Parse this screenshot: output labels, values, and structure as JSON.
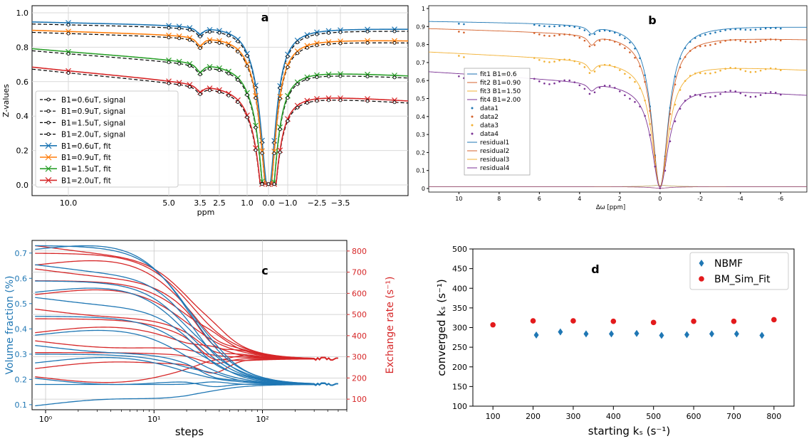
{
  "chart_data": [
    {
      "panel": "a",
      "type": "line",
      "panel_label": "a",
      "xlabel": "ppm",
      "ylabel": "Z-values",
      "x_ticks": [
        "10.0",
        "5.0",
        "3.5",
        "2.5",
        "1.0",
        "0.0",
        "−1.0",
        "−2.5",
        "−3.5"
      ],
      "y_ticks": [
        "0.0",
        "0.2",
        "0.4",
        "0.6",
        "0.8",
        "1.0"
      ],
      "ylim": [
        0,
        1.05
      ],
      "grid": true,
      "legend_position": "lower-left",
      "legend": [
        "B1=0.6uT, signal",
        "B1=0.9uT, signal",
        "B1=1.5uT, signal",
        "B1=2.0uT, signal",
        "B1=0.6uT, fit",
        "B1=0.9uT, fit",
        "B1=1.5uT, fit",
        "B1=2.0uT, fit"
      ],
      "series": [
        {
          "name": "B1=0.6uT",
          "color": "#1f77b4",
          "baseline_left": 0.945,
          "baseline_right": 0.915,
          "dip_3_5": 0.04,
          "min": 0.02
        },
        {
          "name": "B1=0.9uT",
          "color": "#ff7f0e",
          "baseline_left": 0.895,
          "baseline_right": 0.85,
          "dip_3_5": 0.05,
          "min": 0.02
        },
        {
          "name": "B1=1.5uT",
          "color": "#2ca02c",
          "baseline_left": 0.78,
          "baseline_right": 0.66,
          "dip_3_5": 0.05,
          "min": 0.01
        },
        {
          "name": "B1=2.0uT",
          "color": "#d62728",
          "baseline_left": 0.67,
          "baseline_right": 0.52,
          "dip_3_5": 0.04,
          "min": 0.01
        }
      ]
    },
    {
      "panel": "b",
      "type": "line",
      "panel_label": "b",
      "xlabel": "Δω [ppm]",
      "x_ticks": [
        "10",
        "8",
        "6",
        "4",
        "2",
        "0",
        "-2",
        "-4",
        "-6"
      ],
      "y_ticks": [
        "0",
        "0.1",
        "0.2",
        "0.3",
        "0.4",
        "0.5",
        "0.6",
        "0.7",
        "0.8",
        "0.9",
        "1"
      ],
      "ylim": [
        0,
        1
      ],
      "xlim": [
        11.5,
        -7.3
      ],
      "legend_position": "center-left",
      "legend": [
        "fit1 B1=0.6",
        "fit2 B1=0.90",
        "fit3 B1=1.50",
        "fit4 B1=2.00",
        "data1",
        "data2",
        "data3",
        "data4",
        "residual1",
        "residual2",
        "residual3",
        "residual4"
      ],
      "series": [
        {
          "name": "fit1 B1=0.6",
          "color": "#1f77b4",
          "baseline_left": 0.93,
          "baseline_right": 0.9
        },
        {
          "name": "fit2 B1=0.90",
          "color": "#d4622c",
          "baseline_left": 0.89,
          "baseline_right": 0.83
        },
        {
          "name": "fit3 B1=1.50",
          "color": "#f2b134",
          "baseline_left": 0.76,
          "baseline_right": 0.66
        },
        {
          "name": "fit4 B1=2.00",
          "color": "#7b3294",
          "baseline_left": 0.65,
          "baseline_right": 0.52
        }
      ]
    },
    {
      "panel": "c",
      "type": "line",
      "panel_label": "c",
      "xlabel": "steps",
      "ylabel_left": "Volume fraction (%)",
      "ylabel_right": "Exchange rate (s⁻¹)",
      "x_scale": "log",
      "x_ticks": [
        "10⁰",
        "10¹",
        "10²"
      ],
      "y_left_ticks": [
        "0.1",
        "0.2",
        "0.3",
        "0.4",
        "0.5",
        "0.6",
        "0.7"
      ],
      "y_right_ticks": [
        "100",
        "200",
        "300",
        "400",
        "500",
        "600",
        "700",
        "800"
      ],
      "y_left_lim": [
        0.08,
        0.75
      ],
      "y_right_lim": [
        50,
        850
      ],
      "left_color": "#1f77b4",
      "right_color": "#d62728",
      "volume_fraction_starts": [
        0.73,
        0.72,
        0.65,
        0.59,
        0.55,
        0.52,
        0.45,
        0.38,
        0.33,
        0.3,
        0.27,
        0.2,
        0.18,
        0.1
      ],
      "volume_fraction_converged": 0.18,
      "exchange_rate_starts": [
        820,
        790,
        740,
        710,
        660,
        600,
        520,
        480,
        420,
        370,
        320,
        250,
        200
      ],
      "exchange_rate_converged": 290
    },
    {
      "panel": "d",
      "type": "scatter",
      "panel_label": "d",
      "xlabel": "starting kₛ (s⁻¹)",
      "ylabel": "converged kₛ (s⁻¹)",
      "x_ticks": [
        "100",
        "200",
        "300",
        "400",
        "500",
        "600",
        "700",
        "800"
      ],
      "y_ticks": [
        "100",
        "150",
        "200",
        "250",
        "300",
        "350",
        "400",
        "450",
        "500"
      ],
      "xlim": [
        50,
        850
      ],
      "ylim": [
        100,
        500
      ],
      "legend_position": "top-right",
      "series": [
        {
          "name": "NBMF",
          "color": "#1f77b4",
          "marker": "diamond",
          "x": [
            208,
            268,
            332,
            395,
            458,
            520,
            583,
            645,
            707,
            770
          ],
          "y": [
            281,
            289,
            284,
            284,
            285,
            280,
            282,
            284,
            284,
            280
          ]
        },
        {
          "name": "BM_Sim_Fit",
          "color": "#e31a1c",
          "marker": "circle",
          "x": [
            100,
            200,
            300,
            400,
            500,
            600,
            700,
            800
          ],
          "y": [
            307,
            317,
            317,
            316,
            313,
            316,
            316,
            320
          ]
        }
      ]
    }
  ]
}
